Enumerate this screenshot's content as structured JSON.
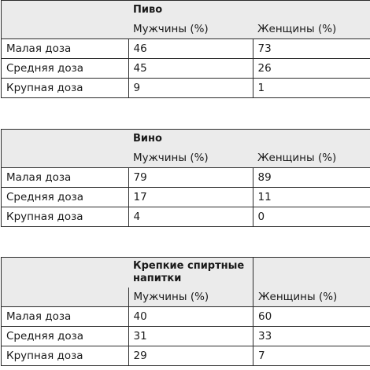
{
  "tables": [
    {
      "title": "Пиво",
      "headers": [
        "",
        "Мужчины (%)",
        "Женщины (%)"
      ],
      "rows": [
        {
          "label": "Малая доза",
          "men": "46",
          "women": "73"
        },
        {
          "label": "Средняя доза",
          "men": "45",
          "women": "26"
        },
        {
          "label": "Крупная доза",
          "men": "9",
          "women": "1"
        }
      ]
    },
    {
      "title": "Вино",
      "headers": [
        "",
        "Мужчины (%)",
        "Женщины (%)"
      ],
      "rows": [
        {
          "label": "Малая доза",
          "men": "79",
          "women": "89"
        },
        {
          "label": "Средняя доза",
          "men": "17",
          "women": "11"
        },
        {
          "label": "Крупная доза",
          "men": "4",
          "women": "0"
        }
      ]
    },
    {
      "title_line1": "Крепкие спиртные",
      "title_line2": "напитки",
      "headers": [
        "",
        "Мужчины (%)",
        "Женщины (%)"
      ],
      "rows": [
        {
          "label": "Малая доза",
          "men": "40",
          "women": "60"
        },
        {
          "label": "Средняя доза",
          "men": "31",
          "women": "33"
        },
        {
          "label": "Крупная доза",
          "men": "29",
          "women": "7"
        }
      ]
    }
  ]
}
